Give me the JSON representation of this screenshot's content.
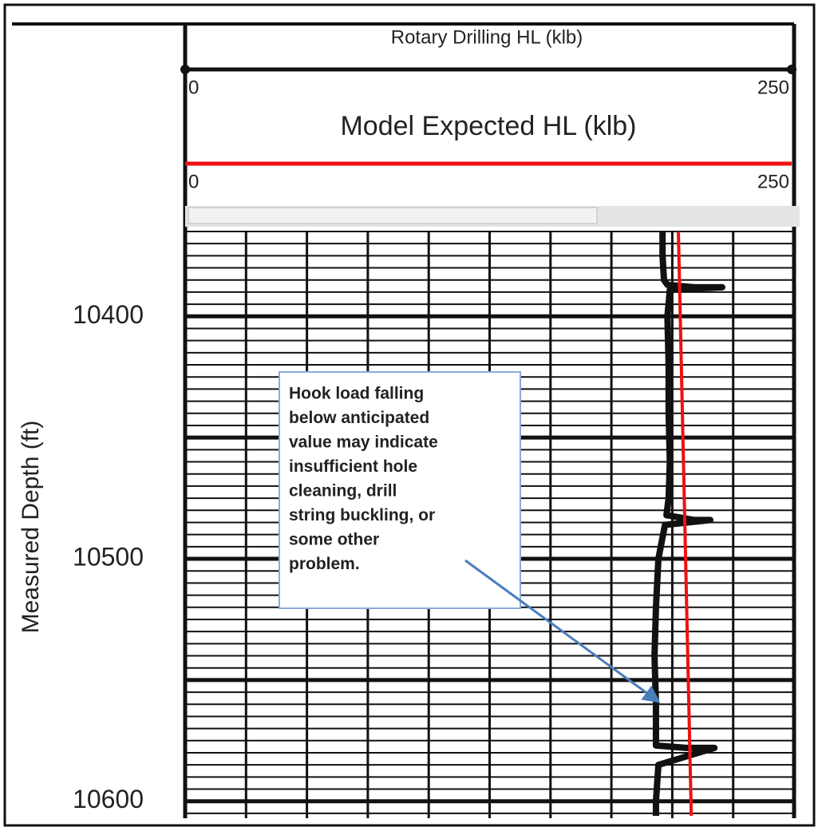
{
  "chart_data": {
    "type": "log-track",
    "ylabel": "Measured Depth (ft)",
    "ylim": [
      10365,
      10607
    ],
    "yticks": [
      10400,
      10500,
      10600
    ],
    "ygrid": [
      10365,
      10370,
      10375,
      10380,
      10385,
      10390,
      10395,
      10400,
      10405,
      10410,
      10415,
      10420,
      10425,
      10430,
      10435,
      10440,
      10445,
      10450,
      10455,
      10460,
      10465,
      10470,
      10475,
      10480,
      10485,
      10490,
      10495,
      10500,
      10505,
      10510,
      10515,
      10520,
      10525,
      10530,
      10535,
      10540,
      10545,
      10550,
      10555,
      10560,
      10565,
      10570,
      10575,
      10580,
      10585,
      10590,
      10595,
      10600,
      10605
    ],
    "xlim": [
      0,
      250
    ],
    "xticks": [
      0,
      250
    ],
    "xgrid": [
      0,
      25,
      50,
      75,
      100,
      125,
      150,
      175,
      200,
      225,
      250
    ],
    "grid": true,
    "series": [
      {
        "name": "Rotary Drilling HL (klb)",
        "color": "#111111",
        "x": [
          196,
          196,
          196.6,
          198,
          209,
          214,
          220.5,
          199,
          198,
          198.5,
          198.5,
          199,
          198.5,
          197.6,
          209,
          215.6,
          197,
          194.3,
          193.3,
          192.7,
          193.3,
          193.3,
          205.8,
          212.3,
          217.3,
          194.3,
          193.3,
          193.3
        ],
        "y": [
          10365,
          10375,
          10385,
          10387,
          10388,
          10388,
          10388,
          10389,
          10400,
          10420,
          10440,
          10460,
          10475,
          10482,
          10484,
          10484,
          10486,
          10500,
          10520,
          10540,
          10560,
          10577,
          10578,
          10578,
          10578,
          10585,
          10600,
          10606
        ]
      },
      {
        "name": "Model Expected HL (klb)",
        "color": "#ee1111",
        "x": [
          202.5,
          207.8
        ],
        "y": [
          10365,
          10606
        ]
      }
    ],
    "annotation": {
      "lines": [
        "Hook load falling",
        "below anticipated",
        "value may indicate",
        "insufficient hole",
        "cleaning, drill",
        "string buckling, or",
        "some other",
        "problem."
      ]
    }
  }
}
